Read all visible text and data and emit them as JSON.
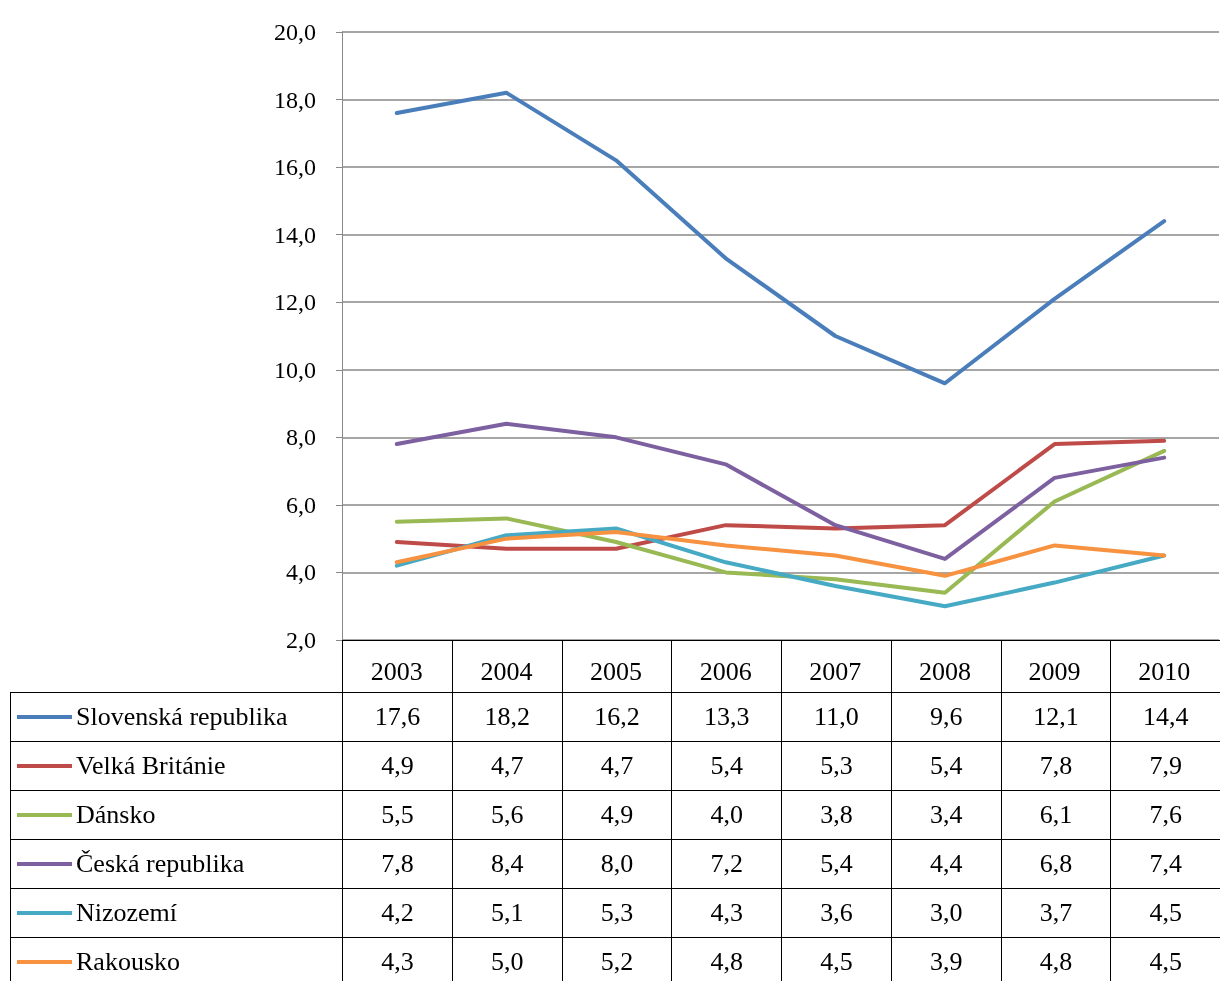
{
  "chart_data": {
    "type": "line",
    "categories": [
      "2003",
      "2004",
      "2005",
      "2006",
      "2007",
      "2008",
      "2009",
      "2010"
    ],
    "ylim": [
      2,
      20
    ],
    "yticks": [
      {
        "value": 2,
        "label": "2,0"
      },
      {
        "value": 4,
        "label": "4,0"
      },
      {
        "value": 6,
        "label": "6,0"
      },
      {
        "value": 8,
        "label": "8,0"
      },
      {
        "value": 10,
        "label": "10,0"
      },
      {
        "value": 12,
        "label": "12,0"
      },
      {
        "value": 14,
        "label": "14,0"
      },
      {
        "value": 16,
        "label": "16,0"
      },
      {
        "value": 18,
        "label": "18,0"
      },
      {
        "value": 20,
        "label": "20,0"
      }
    ],
    "grid": "y",
    "legend": "bottom",
    "marker": "none",
    "line_style": "solid",
    "series": [
      {
        "name": "Slovenská republika",
        "color": "#4a7ebb",
        "values": [
          17.6,
          18.2,
          16.2,
          13.3,
          11.0,
          9.6,
          12.1,
          14.4
        ],
        "value_labels": [
          "17,6",
          "18,2",
          "16,2",
          "13,3",
          "11,0",
          "9,6",
          "12,1",
          "14,4"
        ]
      },
      {
        "name": "Velká Británie",
        "color": "#be4b48",
        "values": [
          4.9,
          4.7,
          4.7,
          5.4,
          5.3,
          5.4,
          7.8,
          7.9
        ],
        "value_labels": [
          "4,9",
          "4,7",
          "4,7",
          "5,4",
          "5,3",
          "5,4",
          "7,8",
          "7,9"
        ]
      },
      {
        "name": "Dánsko",
        "color": "#98b954",
        "values": [
          5.5,
          5.6,
          4.9,
          4.0,
          3.8,
          3.4,
          6.1,
          7.6
        ],
        "value_labels": [
          "5,5",
          "5,6",
          "4,9",
          "4,0",
          "3,8",
          "3,4",
          "6,1",
          "7,6"
        ]
      },
      {
        "name": "Česká republika",
        "color": "#7d60a0",
        "values": [
          7.8,
          8.4,
          8.0,
          7.2,
          5.4,
          4.4,
          6.8,
          7.4
        ],
        "value_labels": [
          "7,8",
          "8,4",
          "8,0",
          "7,2",
          "5,4",
          "4,4",
          "6,8",
          "7,4"
        ]
      },
      {
        "name": "Nizozemí",
        "color": "#46aac5",
        "values": [
          4.2,
          5.1,
          5.3,
          4.3,
          3.6,
          3.0,
          3.7,
          4.5
        ],
        "value_labels": [
          "4,2",
          "5,1",
          "5,3",
          "4,3",
          "3,6",
          "3,0",
          "3,7",
          "4,5"
        ]
      },
      {
        "name": "Rakousko",
        "color": "#f69240",
        "values": [
          4.3,
          5.0,
          5.2,
          4.8,
          4.5,
          3.9,
          4.8,
          4.5
        ],
        "value_labels": [
          "4,3",
          "5,0",
          "5,2",
          "4,8",
          "4,5",
          "3,9",
          "4,8",
          "4,5"
        ]
      }
    ]
  }
}
